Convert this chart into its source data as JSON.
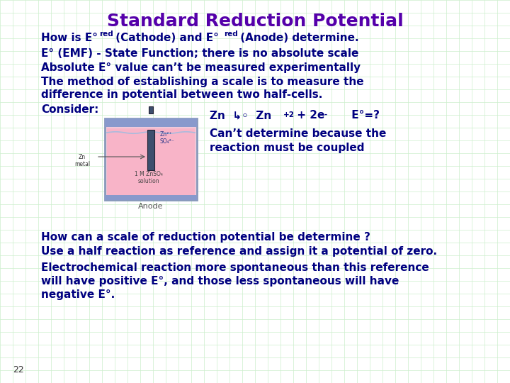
{
  "title": "Standard Reduction Potential",
  "title_color": "#5500AA",
  "title_fontsize": 18,
  "bg_color": "#ffffff",
  "grid_color": "#cceecc",
  "body_color": "#000080",
  "fs_main": 11,
  "fs_sub": 7.5,
  "fs_rxn": 11,
  "fs_small": 5,
  "slide_num": "22",
  "line2": "E° (EMF) - State Function; there is no absolute scale",
  "line3": "Absolute E° value can’t be measured experimentally",
  "line4a": "The method of establishing a scale is to measure the",
  "line4b": "difference in potential between two half-cells.",
  "line5": "Consider:",
  "cant_det1": "Can’t determine because the",
  "cant_det2": "reaction must be coupled",
  "line6": "How can a scale of reduction potential be determine ?",
  "line7": "Use a half reaction as reference and assign it a potential of zero.",
  "line8a": "Electrochemical reaction more spontaneous than this reference",
  "line8b": "will have positive E°, and those less spontaneous will have",
  "line8c": "negative E°."
}
